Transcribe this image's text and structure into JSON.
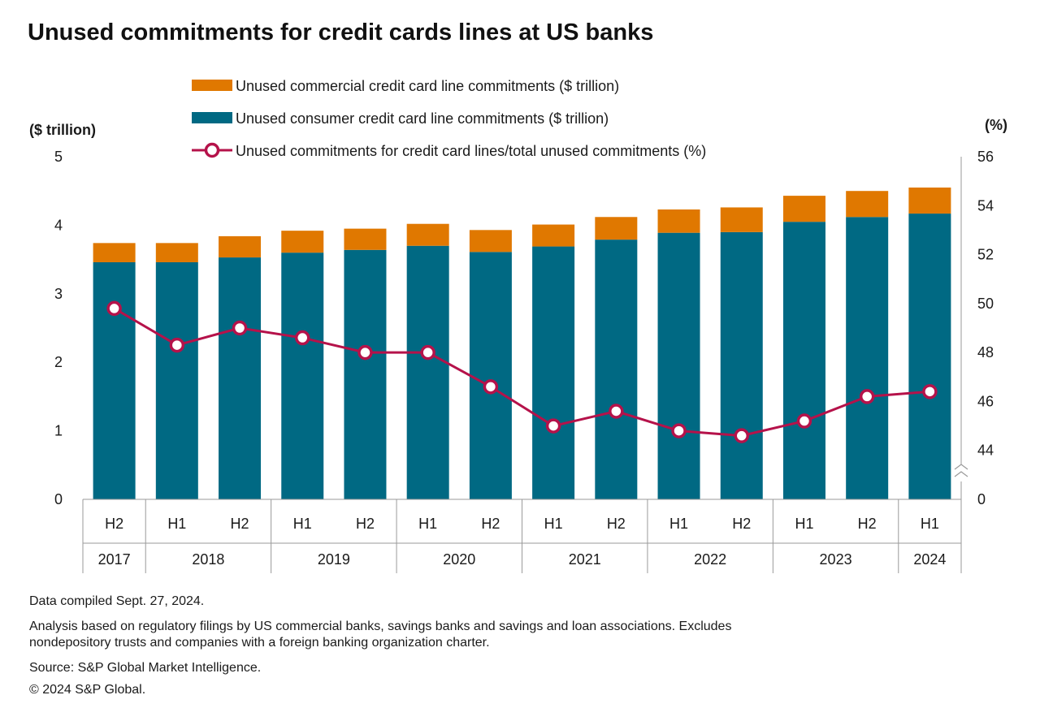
{
  "title": "Unused commitments for credit cards lines at US banks",
  "chart_data": {
    "type": "bar",
    "stacked": true,
    "title": "Unused commitments for credit cards lines at US banks",
    "y_left_label": "($ trillion)",
    "y_right_label": "(%)",
    "y_left_range": [
      0,
      5
    ],
    "y_left_ticks": [
      "0",
      "1",
      "2",
      "3",
      "4",
      "5"
    ],
    "y_right_range": [
      42,
      56
    ],
    "y_right_ticks": [
      "0",
      "44",
      "46",
      "48",
      "50",
      "52",
      "54",
      "56"
    ],
    "right_axis_break": true,
    "grid": false,
    "legend_position": "top",
    "categories": [
      "H2",
      "H1",
      "H2",
      "H1",
      "H2",
      "H1",
      "H2",
      "H1",
      "H2",
      "H1",
      "H2",
      "H1",
      "H2",
      "H1"
    ],
    "year_groups": [
      {
        "label": "2017",
        "span": 1
      },
      {
        "label": "2018",
        "span": 2
      },
      {
        "label": "2019",
        "span": 2
      },
      {
        "label": "2020",
        "span": 2
      },
      {
        "label": "2021",
        "span": 2
      },
      {
        "label": "2022",
        "span": 2
      },
      {
        "label": "2023",
        "span": 2
      },
      {
        "label": "2024",
        "span": 1
      }
    ],
    "series": [
      {
        "name": "Unused consumer credit card line commitments ($ trillion)",
        "kind": "bar",
        "axis": "left",
        "color": "#006983",
        "values": [
          3.46,
          3.46,
          3.53,
          3.6,
          3.64,
          3.7,
          3.61,
          3.69,
          3.79,
          3.89,
          3.9,
          4.05,
          4.12,
          4.17
        ]
      },
      {
        "name": "Unused commercial credit card line commitments ($ trillion)",
        "kind": "bar",
        "axis": "left",
        "color": "#E07800",
        "values": [
          0.28,
          0.28,
          0.31,
          0.32,
          0.31,
          0.32,
          0.32,
          0.32,
          0.33,
          0.34,
          0.36,
          0.38,
          0.38,
          0.38
        ]
      },
      {
        "name": "Unused commitments for credit card lines/total unused commitments (%)",
        "kind": "line",
        "axis": "right",
        "color": "#B5124A",
        "values": [
          49.8,
          48.3,
          49.0,
          48.6,
          48.0,
          48.0,
          46.6,
          45.0,
          45.6,
          44.8,
          44.6,
          45.2,
          46.2,
          46.4
        ]
      }
    ]
  },
  "footer": {
    "line1": "Data compiled Sept. 27, 2024.",
    "line2": "Analysis based on regulatory filings by US commercial banks, savings banks and savings and loan associations. Excludes",
    "line3": "nondepository trusts and companies with a foreign banking organization charter.",
    "line4": "Source: S&P Global Market Intelligence.",
    "line5": "© 2024 S&P Global."
  }
}
